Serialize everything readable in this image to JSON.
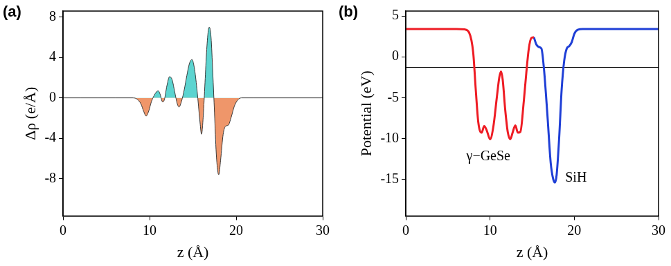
{
  "chart_data": [
    {
      "type": "area",
      "panel_label": "(a)",
      "x_label": "z (Å)",
      "y_label": "Δρ (e/Å)",
      "xlim": [
        0,
        30
      ],
      "xticks": [
        0,
        10,
        20,
        30
      ],
      "ylim": [
        -11.7,
        8.6
      ],
      "yticks": [
        -8,
        -4,
        0,
        4,
        8
      ],
      "grid": false,
      "tick_labels": true,
      "series": [
        {
          "color": "#3a3a3a",
          "x": [
            0,
            2,
            4,
            6,
            8,
            8.5,
            9,
            9.3,
            9.6,
            9.9,
            10.2,
            10.5,
            10.8,
            11,
            11.2,
            11.5,
            11.7,
            12,
            12.3,
            12.6,
            12.9,
            13.2,
            13.4,
            13.7,
            14,
            14.3,
            14.6,
            14.9,
            15.2,
            15.5,
            15.8,
            16,
            16.2,
            16.4,
            16.6,
            16.8,
            16.9,
            17.1,
            17.3,
            17.5,
            17.7,
            17.9,
            18,
            18.2,
            18.5,
            18.8,
            19.1,
            19.4,
            19.8,
            20.2,
            20.6,
            22,
            24,
            26,
            28,
            30
          ],
          "values": [
            0,
            0,
            0,
            0,
            0,
            -0.1,
            -0.6,
            -1.3,
            -1.8,
            -1.3,
            -0.4,
            0.2,
            0.6,
            0.7,
            0.4,
            -0.4,
            -0.2,
            1.2,
            2.1,
            1.8,
            0.6,
            -0.6,
            -0.9,
            -0.3,
            0.8,
            2.2,
            3.4,
            3.8,
            2.8,
            0.6,
            -2.2,
            -3.6,
            -1.8,
            1.5,
            4.8,
            6.8,
            7.0,
            6.0,
            2.5,
            -1.5,
            -5.5,
            -7.4,
            -7.6,
            -6.2,
            -3.6,
            -2.8,
            -2.7,
            -2.0,
            -0.8,
            -0.2,
            0,
            0,
            0,
            0,
            0,
            0
          ]
        }
      ]
    },
    {
      "type": "line",
      "panel_label": "(b)",
      "x_label": "z (Å)",
      "y_label": "Potential (eV)",
      "xlim": [
        0,
        30
      ],
      "xticks": [
        0,
        10,
        20,
        30
      ],
      "ylim": [
        -19.5,
        5.6
      ],
      "yticks": [
        -15,
        -10,
        -5,
        0,
        5
      ],
      "grid": false,
      "tick_labels": true,
      "reference_line": -1.3,
      "annotations": [
        {
          "text": "γ−GeSe",
          "x": 9.8,
          "y": -12.2
        },
        {
          "text": "SiH",
          "x": 20.2,
          "y": -14.9
        }
      ],
      "series": [
        {
          "color": "#ee1c24",
          "x": [
            0,
            2,
            4,
            6,
            7,
            7.5,
            8,
            8.3,
            8.6,
            9,
            9.3,
            9.6,
            10,
            10.4,
            10.8,
            11.1,
            11.3,
            11.5,
            11.8,
            12.1,
            12.4,
            12.7,
            13,
            13.3,
            13.6,
            14,
            14.3,
            14.6,
            14.9,
            15.2
          ],
          "values": [
            3.4,
            3.4,
            3.4,
            3.4,
            3.35,
            3.0,
            0.5,
            -4,
            -8,
            -9.3,
            -8.5,
            -9.0,
            -10.1,
            -8.5,
            -5,
            -2.5,
            -1.8,
            -2.8,
            -6.5,
            -9.2,
            -10.1,
            -9.2,
            -8.4,
            -9.3,
            -9.2,
            -5.5,
            -2,
            1,
            2.3,
            2.4
          ]
        },
        {
          "color": "#1f3fd6",
          "x": [
            15.2,
            15.5,
            15.8,
            16.1,
            16.4,
            16.8,
            17.2,
            17.5,
            17.7,
            17.9,
            18.2,
            18.5,
            18.8,
            19.1,
            19.4,
            19.7,
            20,
            20.4,
            21,
            22,
            26,
            30
          ],
          "values": [
            2.4,
            1.5,
            1.2,
            1.0,
            -1.5,
            -7,
            -13,
            -15.0,
            -15.4,
            -14.5,
            -10,
            -4,
            -0.5,
            1.0,
            1.3,
            1.8,
            2.8,
            3.3,
            3.4,
            3.4,
            3.4,
            3.4
          ]
        }
      ]
    }
  ]
}
